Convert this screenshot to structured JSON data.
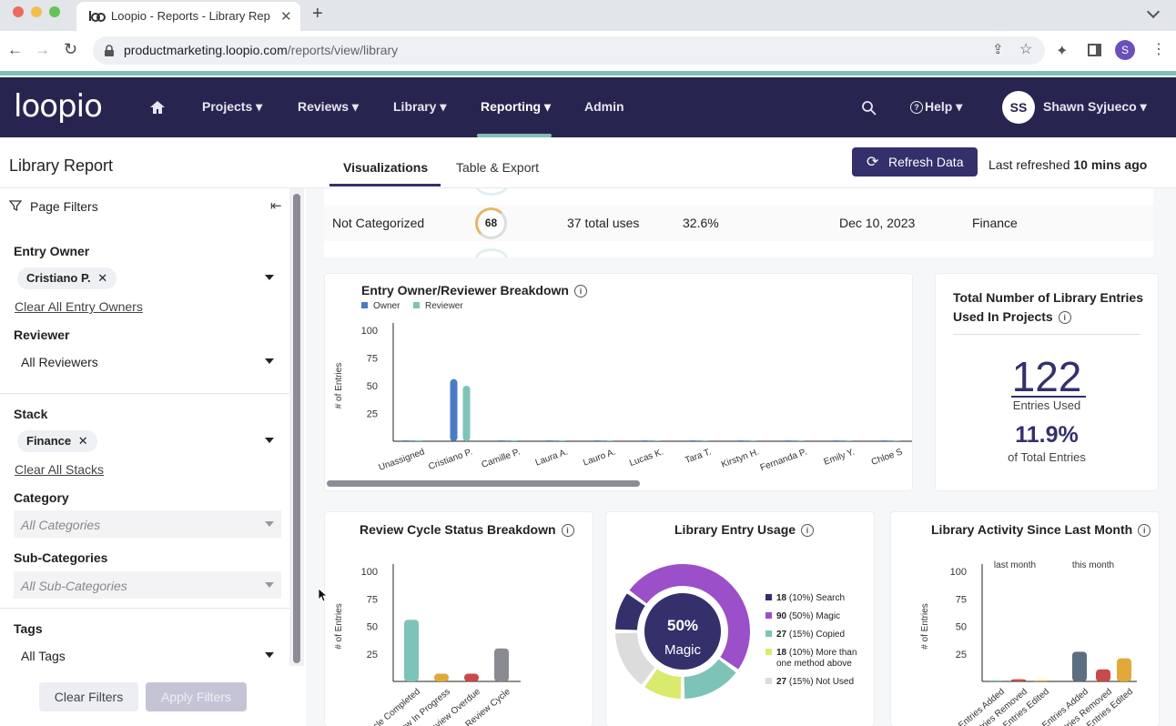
{
  "browser": {
    "tab_title": "Loopio - Reports - Library Rep",
    "new_tab": "+",
    "url_host": "productmarketing.loopio.com",
    "url_path": "/reports/view/library",
    "profile_initial": "S"
  },
  "nav": {
    "logo": "loopio",
    "items": [
      "Projects",
      "Reviews",
      "Library",
      "Reporting",
      "Admin"
    ],
    "help": "Help",
    "user_initials": "SS",
    "user_name": "Shawn Syjueco"
  },
  "header": {
    "page_title": "Library Report",
    "tabs": [
      "Visualizations",
      "Table & Export"
    ],
    "refresh_label": "Refresh Data",
    "last_refreshed_prefix": "Last refreshed",
    "last_refreshed_value": "10 mins ago"
  },
  "filters": {
    "title": "Page Filters",
    "entry_owner_label": "Entry Owner",
    "entry_owner_chip": "Cristiano P.",
    "clear_entry_owners": "Clear All Entry Owners",
    "reviewer_label": "Reviewer",
    "reviewer_value": "All Reviewers",
    "stack_label": "Stack",
    "stack_chip": "Finance",
    "clear_stacks": "Clear All Stacks",
    "category_label": "Category",
    "category_value": "All Categories",
    "subcategory_label": "Sub-Categories",
    "subcategory_value": "All Sub-Categories",
    "tags_label": "Tags",
    "tags_value": "All Tags",
    "clear_filters": "Clear Filters",
    "apply_filters": "Apply Filters"
  },
  "table_row": {
    "name": "Not Categorized",
    "score": "68",
    "uses": "37 total uses",
    "percent": "32.6%",
    "date": "Dec 10, 2023",
    "stack": "Finance"
  },
  "total_card": {
    "title_line1": "Total Number of Library Entries",
    "title_line2": "Used In Projects",
    "count": "122",
    "count_label": "Entries Used",
    "percent": "11.9%",
    "percent_label": "of Total Entries"
  },
  "chart_data": [
    {
      "type": "bar",
      "title": "Entry Owner/Reviewer Breakdown",
      "ylabel": "# of Entries",
      "ylim": [
        0,
        100
      ],
      "yticks": [
        100,
        75,
        50,
        25
      ],
      "categories": [
        "Unassigned",
        "Cristiano P.",
        "Camille P.",
        "Laura A.",
        "Lauro A.",
        "Lucas K.",
        "Tara T.",
        "Kirstyn H.",
        "Fernanda P.",
        "Emily Y.",
        "Chloe S"
      ],
      "series": [
        {
          "name": "Owner",
          "color": "#4a7cc4",
          "values": [
            0,
            56,
            0,
            0,
            0,
            0,
            0,
            0,
            0,
            0,
            0
          ]
        },
        {
          "name": "Reviewer",
          "color": "#7ec3b8",
          "values": [
            0,
            50,
            0,
            0,
            0,
            0,
            0,
            0,
            0,
            0,
            0
          ]
        }
      ]
    },
    {
      "type": "bar",
      "title": "Review Cycle Status Breakdown",
      "ylabel": "# of Entries",
      "ylim": [
        0,
        100
      ],
      "yticks": [
        100,
        75,
        50,
        25
      ],
      "categories": [
        "Cycle Completed",
        "Review In Progress",
        "Review Overdue",
        "No Review Cycle"
      ],
      "values": [
        56,
        7,
        7,
        30
      ],
      "colors": [
        "#7ec3b8",
        "#e0a93a",
        "#c84a4a",
        "#8a8a92"
      ]
    },
    {
      "type": "pie",
      "title": "Library Entry Usage",
      "center_value": "50%",
      "center_label": "Magic",
      "slices": [
        {
          "count": "18",
          "pct": "(10%)",
          "label": "Search",
          "value": 18,
          "color": "#33306b"
        },
        {
          "count": "90",
          "pct": "(50%)",
          "label": "Magic",
          "value": 90,
          "color": "#9b4fc9"
        },
        {
          "count": "27",
          "pct": "(15%)",
          "label": "Copied",
          "value": 27,
          "color": "#7ec3b8"
        },
        {
          "count": "18",
          "pct": "(10%)",
          "label": "More than one method above",
          "value": 18,
          "color": "#d9ea6c"
        },
        {
          "count": "27",
          "pct": "(15%)",
          "label": "Not Used",
          "value": 27,
          "color": "#dcdcdc"
        }
      ]
    },
    {
      "type": "bar",
      "title": "Library Activity Since Last Month",
      "ylim": [
        0,
        100
      ],
      "yticks": [
        100,
        75,
        50,
        25
      ],
      "ylabel": "# of Entries",
      "groups": [
        "last month",
        "this month"
      ],
      "categories": [
        "Entries Added",
        "Entries Removed",
        "Entries Edited",
        "Entries Added",
        "Entries Removed",
        "Entries Edited"
      ],
      "values": [
        1,
        2,
        1,
        27,
        11,
        21
      ],
      "colors": [
        "#7ec3b8",
        "#c84a4a",
        "#e0a93a",
        "#5c6f80",
        "#c84a4a",
        "#e0a93a"
      ]
    }
  ]
}
